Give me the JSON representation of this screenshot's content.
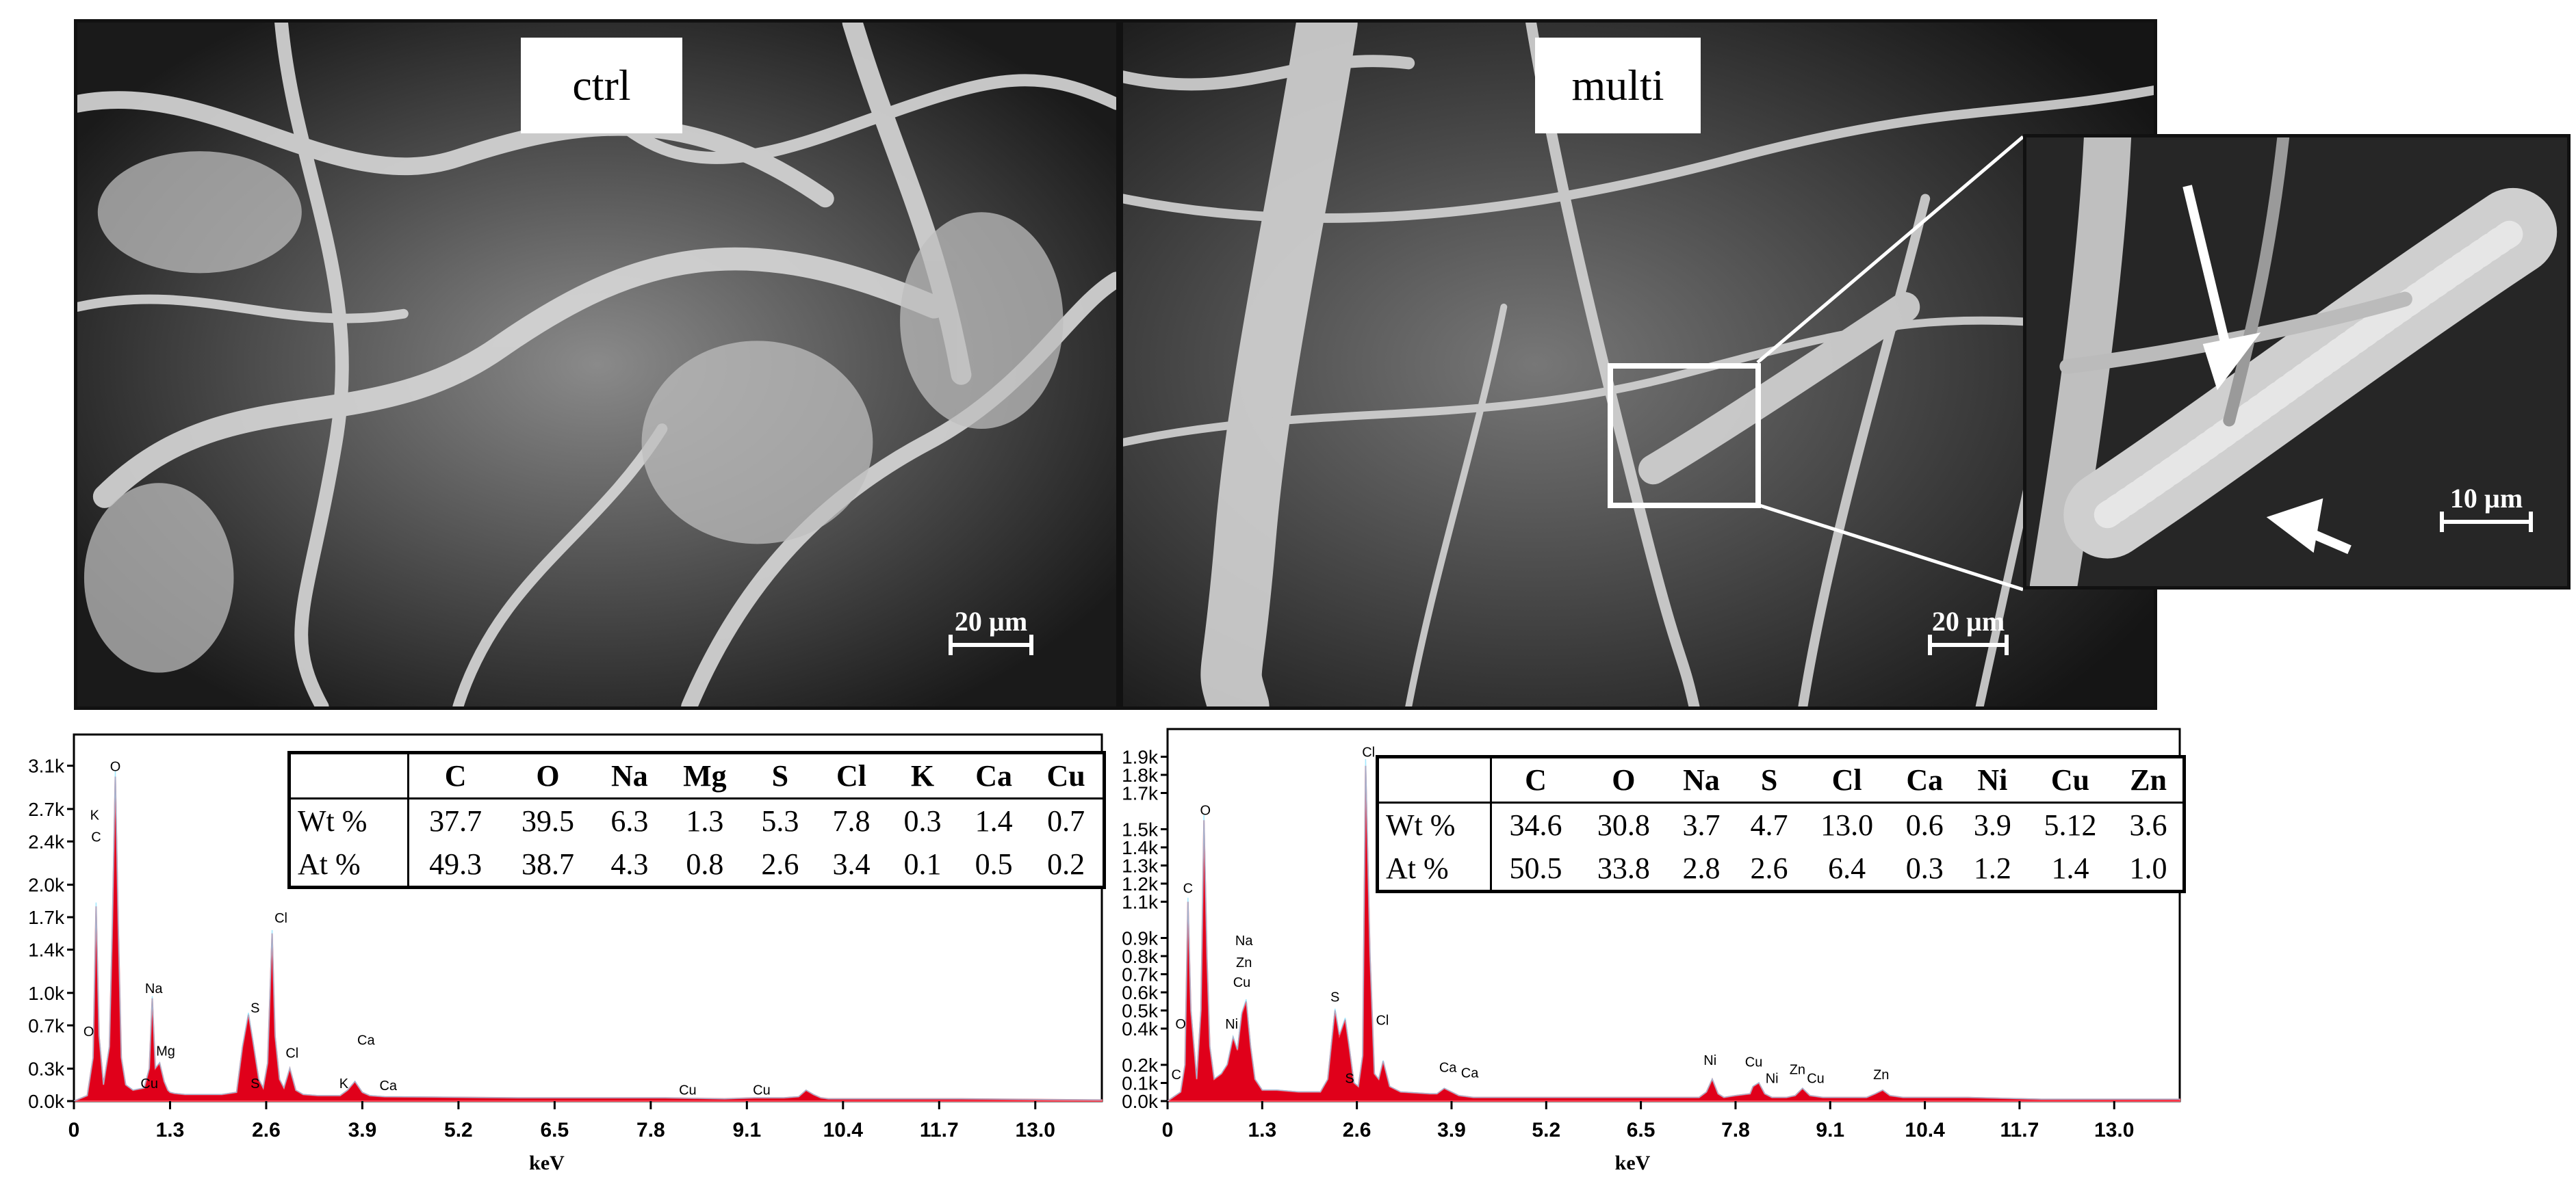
{
  "sem_panels": {
    "left": {
      "label": "ctrl",
      "scale_bar": "20 µm"
    },
    "right": {
      "label": "multi",
      "scale_bar": "20 µm"
    },
    "inset": {
      "scale_bar": "10 µm"
    }
  },
  "eds_tables": [
    {
      "elements": [
        "C",
        "O",
        "Na",
        "Mg",
        "S",
        "Cl",
        "K",
        "Ca",
        "Cu"
      ],
      "rows": [
        {
          "label": "Wt %",
          "values": [
            "37.7",
            "39.5",
            "6.3",
            "1.3",
            "5.3",
            "7.8",
            "0.3",
            "1.4",
            "0.7"
          ]
        },
        {
          "label": "At %",
          "values": [
            "49.3",
            "38.7",
            "4.3",
            "0.8",
            "2.6",
            "3.4",
            "0.1",
            "0.5",
            "0.2"
          ]
        }
      ]
    },
    {
      "elements": [
        "C",
        "O",
        "Na",
        "S",
        "Cl",
        "Ca",
        "Ni",
        "Cu",
        "Zn"
      ],
      "rows": [
        {
          "label": "Wt %",
          "values": [
            "34.6",
            "30.8",
            "3.7",
            "4.7",
            "13.0",
            "0.6",
            "3.9",
            "5.12",
            "3.6"
          ]
        },
        {
          "label": "At %",
          "values": [
            "50.5",
            "33.8",
            "2.8",
            "2.6",
            "6.4",
            "0.3",
            "1.2",
            "1.4",
            "1.0"
          ]
        }
      ]
    }
  ],
  "chart_data": [
    {
      "type": "line",
      "xlabel": "keV",
      "ylabel": "",
      "xlim": [
        0,
        13.9
      ],
      "ylim": [
        0,
        3.3
      ],
      "x_ticks": [
        "0",
        "1.3",
        "2.6",
        "3.9",
        "5.2",
        "6.5",
        "7.8",
        "9.1",
        "10.4",
        "11.7",
        "13.0"
      ],
      "x_tick_values": [
        0,
        1.3,
        2.6,
        3.9,
        5.2,
        6.5,
        7.8,
        9.1,
        10.4,
        11.7,
        13.0
      ],
      "y_ticks": [
        "0.0k",
        "0.3k",
        "0.7k",
        "1.0k",
        "1.4k",
        "1.7k",
        "2.0k",
        "2.4k",
        "2.7k",
        "3.1k"
      ],
      "y_tick_values": [
        0,
        0.3,
        0.7,
        1.0,
        1.4,
        1.7,
        2.0,
        2.4,
        2.7,
        3.1
      ],
      "fill_color": "#e0001a",
      "series": [
        {
          "x": [
            0,
            0.18,
            0.26,
            0.3,
            0.34,
            0.4,
            0.48,
            0.52,
            0.56,
            0.6,
            0.64,
            0.7,
            0.8,
            0.95,
            1.02,
            1.06,
            1.1,
            1.16,
            1.22,
            1.27,
            1.3,
            1.36,
            1.5,
            2.0,
            2.2,
            2.28,
            2.36,
            2.42,
            2.5,
            2.56,
            2.62,
            2.68,
            2.72,
            2.78,
            2.84,
            2.92,
            3.0,
            3.1,
            3.3,
            3.6,
            3.7,
            3.8,
            3.9,
            4.0,
            4.2,
            6.0,
            8.0,
            8.8,
            9.2,
            9.6,
            9.8,
            9.9,
            10.0,
            10.1,
            10.2,
            11.0,
            12.0,
            13.9
          ],
          "y": [
            0,
            0.05,
            0.4,
            1.8,
            0.6,
            0.15,
            0.5,
            1.6,
            3.0,
            1.6,
            0.4,
            0.15,
            0.1,
            0.12,
            0.3,
            0.95,
            0.3,
            0.35,
            0.18,
            0.1,
            0.08,
            0.07,
            0.06,
            0.06,
            0.08,
            0.5,
            0.8,
            0.55,
            0.2,
            0.12,
            0.35,
            1.55,
            0.6,
            0.2,
            0.12,
            0.3,
            0.1,
            0.06,
            0.05,
            0.05,
            0.1,
            0.18,
            0.08,
            0.05,
            0.04,
            0.03,
            0.03,
            0.02,
            0.03,
            0.03,
            0.04,
            0.1,
            0.06,
            0.03,
            0.02,
            0.02,
            0.02,
            0.01
          ]
        }
      ],
      "peak_labels": [
        {
          "text": "O",
          "x": 0.56,
          "y": 3.05
        },
        {
          "text": "K",
          "x": 0.28,
          "y": 2.6
        },
        {
          "text": "C",
          "x": 0.3,
          "y": 2.4
        },
        {
          "text": "Cl",
          "x": 2.8,
          "y": 1.65
        },
        {
          "text": "Na",
          "x": 1.08,
          "y": 1.0
        },
        {
          "text": "S",
          "x": 2.45,
          "y": 0.82
        },
        {
          "text": "Cl",
          "x": 2.95,
          "y": 0.4
        },
        {
          "text": "Mg",
          "x": 1.24,
          "y": 0.42
        },
        {
          "text": "Ca",
          "x": 3.95,
          "y": 0.52
        },
        {
          "text": "O",
          "x": 0.2,
          "y": 0.6
        },
        {
          "text": "S",
          "x": 2.45,
          "y": 0.12
        },
        {
          "text": "Cu",
          "x": 1.02,
          "y": 0.12
        },
        {
          "text": "K",
          "x": 3.65,
          "y": 0.12
        },
        {
          "text": "Ca",
          "x": 4.25,
          "y": 0.1
        },
        {
          "text": "Cu",
          "x": 8.3,
          "y": 0.06
        },
        {
          "text": "Cu",
          "x": 9.3,
          "y": 0.06
        }
      ]
    },
    {
      "type": "line",
      "xlabel": "keV",
      "ylabel": "",
      "xlim": [
        0,
        13.9
      ],
      "ylim": [
        0,
        2.0
      ],
      "x_ticks": [
        "0",
        "1.3",
        "2.6",
        "3.9",
        "5.2",
        "6.5",
        "7.8",
        "9.1",
        "10.4",
        "11.7",
        "13.0"
      ],
      "x_tick_values": [
        0,
        1.3,
        2.6,
        3.9,
        5.2,
        6.5,
        7.8,
        9.1,
        10.4,
        11.7,
        13.0
      ],
      "y_ticks": [
        "0.0k",
        "0.1k",
        "0.2k",
        "0.4k",
        "0.5k",
        "0.6k",
        "0.7k",
        "0.8k",
        "0.9k",
        "1.1k",
        "1.2k",
        "1.3k",
        "1.4k",
        "1.5k",
        "1.7k",
        "1.8k",
        "1.9k"
      ],
      "y_tick_values": [
        0,
        0.1,
        0.2,
        0.4,
        0.5,
        0.6,
        0.7,
        0.8,
        0.9,
        1.1,
        1.2,
        1.3,
        1.4,
        1.5,
        1.7,
        1.8,
        1.9
      ],
      "fill_color": "#e0001a",
      "series": [
        {
          "x": [
            0,
            0.18,
            0.24,
            0.28,
            0.32,
            0.4,
            0.46,
            0.5,
            0.54,
            0.58,
            0.64,
            0.74,
            0.82,
            0.9,
            0.96,
            1.02,
            1.08,
            1.14,
            1.2,
            1.3,
            1.5,
            1.8,
            2.1,
            2.2,
            2.3,
            2.36,
            2.44,
            2.5,
            2.56,
            2.62,
            2.68,
            2.72,
            2.78,
            2.84,
            2.9,
            2.96,
            3.05,
            3.2,
            3.6,
            3.7,
            3.8,
            3.9,
            4.0,
            4.2,
            6.0,
            7.3,
            7.4,
            7.48,
            7.56,
            7.64,
            7.8,
            8.0,
            8.04,
            8.12,
            8.2,
            8.3,
            8.5,
            8.62,
            8.72,
            8.82,
            9.0,
            9.6,
            9.72,
            9.82,
            9.92,
            10.1,
            11.0,
            12.0,
            13.9
          ],
          "y": [
            0,
            0.05,
            0.2,
            1.1,
            0.5,
            0.12,
            0.5,
            1.55,
            0.8,
            0.3,
            0.12,
            0.15,
            0.2,
            0.35,
            0.28,
            0.48,
            0.55,
            0.3,
            0.12,
            0.06,
            0.06,
            0.05,
            0.05,
            0.12,
            0.5,
            0.36,
            0.45,
            0.28,
            0.1,
            0.08,
            0.25,
            1.85,
            0.8,
            0.15,
            0.12,
            0.22,
            0.08,
            0.05,
            0.04,
            0.04,
            0.07,
            0.05,
            0.03,
            0.02,
            0.02,
            0.02,
            0.05,
            0.12,
            0.04,
            0.02,
            0.03,
            0.04,
            0.08,
            0.1,
            0.04,
            0.02,
            0.02,
            0.03,
            0.07,
            0.03,
            0.02,
            0.02,
            0.04,
            0.06,
            0.03,
            0.02,
            0.02,
            0.01,
            0.01
          ]
        }
      ],
      "peak_labels": [
        {
          "text": "Cl",
          "x": 2.76,
          "y": 1.9
        },
        {
          "text": "O",
          "x": 0.52,
          "y": 1.58
        },
        {
          "text": "C",
          "x": 0.28,
          "y": 1.15
        },
        {
          "text": "Na",
          "x": 1.05,
          "y": 0.86
        },
        {
          "text": "Zn",
          "x": 1.05,
          "y": 0.74
        },
        {
          "text": "Cu",
          "x": 1.02,
          "y": 0.63
        },
        {
          "text": "S",
          "x": 2.3,
          "y": 0.55
        },
        {
          "text": "Ni",
          "x": 0.88,
          "y": 0.4
        },
        {
          "text": "Cl",
          "x": 2.95,
          "y": 0.42
        },
        {
          "text": "O",
          "x": 0.18,
          "y": 0.4
        },
        {
          "text": "Ca",
          "x": 3.85,
          "y": 0.16
        },
        {
          "text": "Ca",
          "x": 4.15,
          "y": 0.13
        },
        {
          "text": "Ni",
          "x": 7.45,
          "y": 0.2
        },
        {
          "text": "Cu",
          "x": 8.05,
          "y": 0.19
        },
        {
          "text": "Ni",
          "x": 8.3,
          "y": 0.1
        },
        {
          "text": "Zn",
          "x": 8.65,
          "y": 0.15
        },
        {
          "text": "Cu",
          "x": 8.9,
          "y": 0.1
        },
        {
          "text": "Zn",
          "x": 9.8,
          "y": 0.12
        },
        {
          "text": "C",
          "x": 0.12,
          "y": 0.12
        },
        {
          "text": "S",
          "x": 2.5,
          "y": 0.1
        }
      ]
    }
  ]
}
